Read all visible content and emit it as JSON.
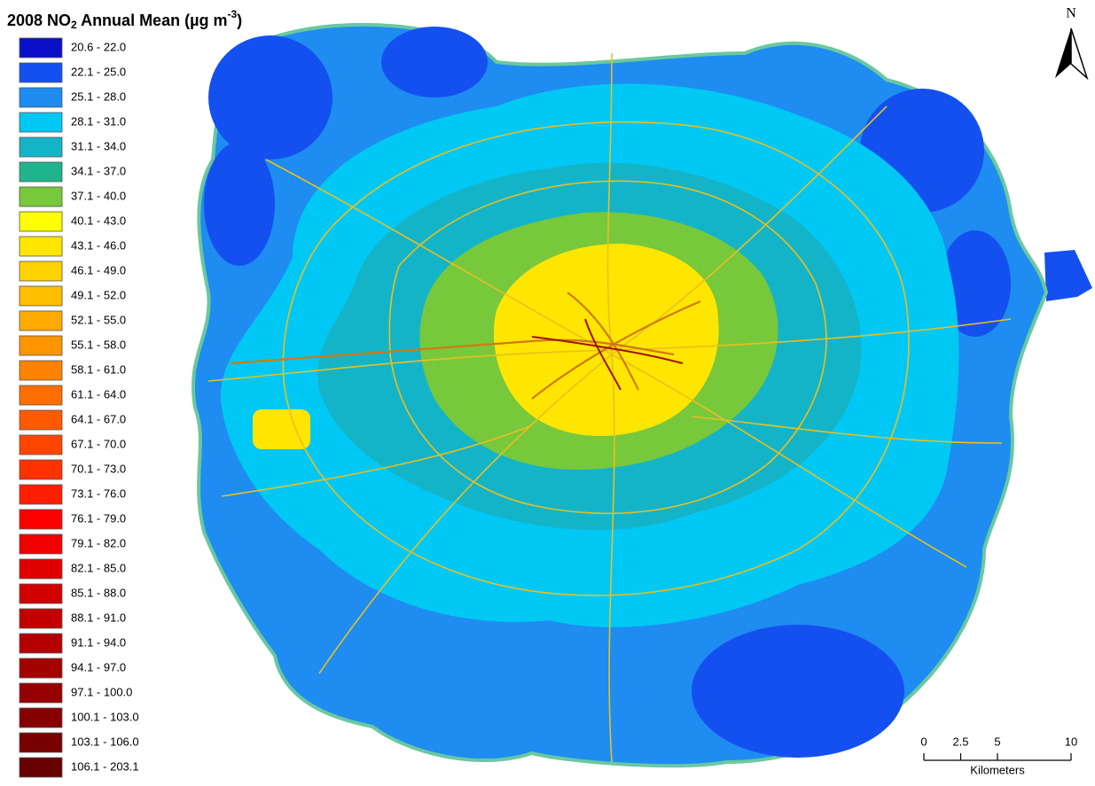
{
  "title": {
    "main": "2008 NO",
    "sub": "2",
    "middle": " Annual Mean (µg m",
    "sup": "-3",
    "end": ")"
  },
  "legend": [
    {
      "label": "20.6 - 22.0",
      "color": "#0a0fc8"
    },
    {
      "label": "22.1 - 25.0",
      "color": "#1450f0"
    },
    {
      "label": "25.1 - 28.0",
      "color": "#1e8cf0"
    },
    {
      "label": "28.1 - 31.0",
      "color": "#00c8f5"
    },
    {
      "label": "31.1 - 34.0",
      "color": "#14b4c8"
    },
    {
      "label": "34.1 - 37.0",
      "color": "#20b48c"
    },
    {
      "label": "37.1 - 40.0",
      "color": "#78c83c"
    },
    {
      "label": "40.1 - 43.0",
      "color": "#ffff00"
    },
    {
      "label": "43.1 - 46.0",
      "color": "#ffe600"
    },
    {
      "label": "46.1 - 49.0",
      "color": "#ffd200"
    },
    {
      "label": "49.1 - 52.0",
      "color": "#ffbe00"
    },
    {
      "label": "52.1 - 55.0",
      "color": "#ffaa00"
    },
    {
      "label": "55.1 - 58.0",
      "color": "#ff9600"
    },
    {
      "label": "58.1 - 61.0",
      "color": "#ff8200"
    },
    {
      "label": "61.1 - 64.0",
      "color": "#ff6e00"
    },
    {
      "label": "64.1 - 67.0",
      "color": "#ff5a00"
    },
    {
      "label": "67.1 - 70.0",
      "color": "#ff4600"
    },
    {
      "label": "70.1 - 73.0",
      "color": "#ff3200"
    },
    {
      "label": "73.1 - 76.0",
      "color": "#ff1e00"
    },
    {
      "label": "76.1 - 79.0",
      "color": "#ff0000"
    },
    {
      "label": "79.1 - 82.0",
      "color": "#f00000"
    },
    {
      "label": "82.1 - 85.0",
      "color": "#e10000"
    },
    {
      "label": "85.1 - 88.0",
      "color": "#d20000"
    },
    {
      "label": "88.1 - 91.0",
      "color": "#c30000"
    },
    {
      "label": "91.1 - 94.0",
      "color": "#b40000"
    },
    {
      "label": "94.1 - 97.0",
      "color": "#a50000"
    },
    {
      "label": "97.1 - 100.0",
      "color": "#960000"
    },
    {
      "label": "100.1 - 103.0",
      "color": "#870000"
    },
    {
      "label": "103.1 - 106.0",
      "color": "#780000"
    },
    {
      "label": "106.1 - 203.1",
      "color": "#690000"
    }
  ],
  "north": "N",
  "scale_bar": {
    "ticks": [
      0,
      2.5,
      5,
      10
    ],
    "unit": "Kilometers"
  }
}
